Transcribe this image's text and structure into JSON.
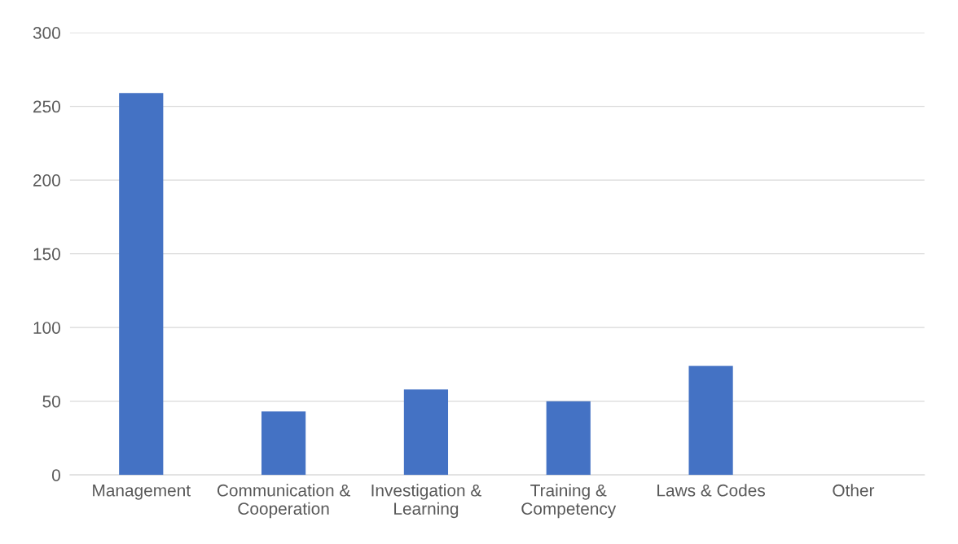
{
  "chart_data": {
    "type": "bar",
    "categories": [
      "Management",
      "Communication &\nCooperation",
      "Investigation &\nLearning",
      "Training &\nCompetency",
      "Laws & Codes",
      "Other"
    ],
    "values": [
      259,
      43,
      58,
      50,
      74,
      0
    ],
    "color": "#4472c4",
    "ylim": [
      0,
      300
    ],
    "yticks": [
      0,
      50,
      100,
      150,
      200,
      250,
      300
    ],
    "grid": "y"
  }
}
